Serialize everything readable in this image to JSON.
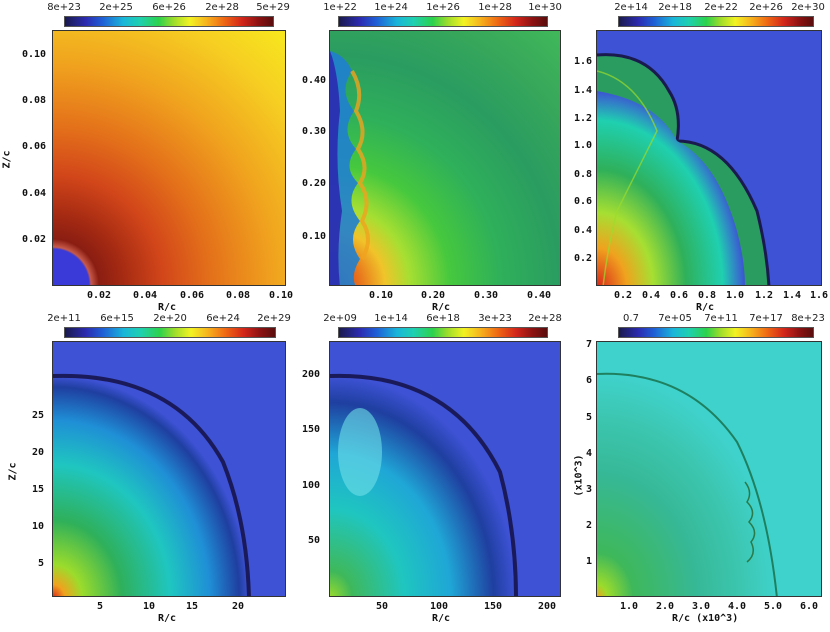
{
  "panels": [
    {
      "colorbar_labels": [
        "8e+23",
        "2e+25",
        "6e+26",
        "2e+28",
        "5e+29"
      ],
      "x_ticks": [
        "0.02",
        "0.04",
        "0.06",
        "0.08",
        "0.10"
      ],
      "y_ticks": [
        "0.02",
        "0.04",
        "0.06",
        "0.08",
        "0.10"
      ],
      "xlabel": "R/c",
      "ylabel": "Z/c"
    },
    {
      "colorbar_labels": [
        "1e+22",
        "1e+24",
        "1e+26",
        "1e+28",
        "1e+30"
      ],
      "x_ticks": [
        "0.10",
        "0.20",
        "0.30",
        "0.40"
      ],
      "y_ticks": [
        "0.10",
        "0.20",
        "0.30",
        "0.40"
      ],
      "xlabel": "R/c",
      "ylabel": ""
    },
    {
      "colorbar_labels": [
        "2e+14",
        "2e+18",
        "2e+22",
        "2e+26",
        "2e+30"
      ],
      "x_ticks": [
        "0.2",
        "0.4",
        "0.6",
        "0.8",
        "1.0",
        "1.2",
        "1.4",
        "1.6"
      ],
      "y_ticks": [
        "0.2",
        "0.4",
        "0.6",
        "0.8",
        "1.0",
        "1.2",
        "1.4",
        "1.6"
      ],
      "xlabel": "R/c",
      "ylabel": ""
    },
    {
      "colorbar_labels": [
        "2e+11",
        "6e+15",
        "2e+20",
        "6e+24",
        "2e+29"
      ],
      "x_ticks": [
        "5",
        "10",
        "15",
        "20"
      ],
      "y_ticks": [
        "5",
        "10",
        "15",
        "20",
        "25"
      ],
      "xlabel": "R/c",
      "ylabel": "Z/c"
    },
    {
      "colorbar_labels": [
        "2e+09",
        "1e+14",
        "6e+18",
        "3e+23",
        "2e+28"
      ],
      "x_ticks": [
        "50",
        "100",
        "150",
        "200"
      ],
      "y_ticks": [
        "50",
        "100",
        "150",
        "200"
      ],
      "xlabel": "R/c",
      "ylabel": ""
    },
    {
      "colorbar_labels": [
        "0.7",
        "7e+05",
        "7e+11",
        "7e+17",
        "8e+23"
      ],
      "x_ticks": [
        "1.0",
        "2.0",
        "3.0",
        "4.0",
        "5.0",
        "6.0"
      ],
      "y_ticks": [
        "1",
        "2",
        "3",
        "4",
        "5",
        "6",
        "7"
      ],
      "xlabel": "R/c (x10^3)",
      "ylabel": "(x10^3)"
    }
  ]
}
